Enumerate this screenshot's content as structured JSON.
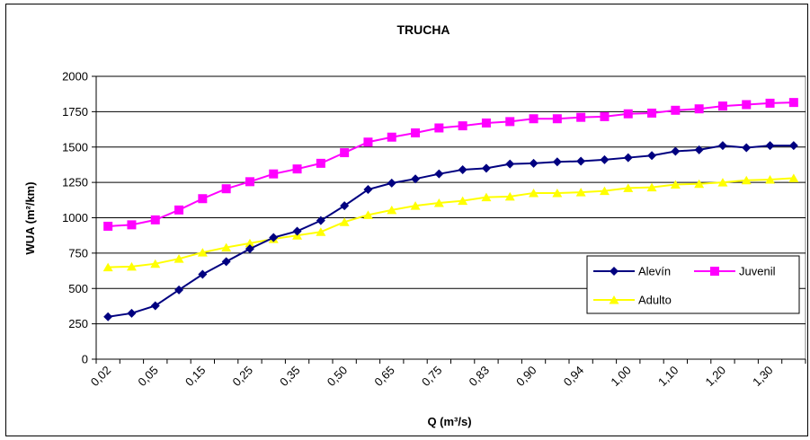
{
  "chart_data": {
    "type": "line",
    "title": "TRUCHA",
    "xlabel": "Q (m³/s)",
    "ylabel": "WUA (m²/km)",
    "ylim": [
      0,
      2000
    ],
    "yticks": [
      0,
      250,
      500,
      750,
      1000,
      1250,
      1500,
      1750,
      2000
    ],
    "ytick_labels": [
      "0",
      "250",
      "500",
      "750",
      "1000",
      "1250",
      "1500",
      "1750",
      "2000"
    ],
    "x_tick_labels": [
      "0,02",
      "0,05",
      "0,15",
      "0,25",
      "0,35",
      "0,50",
      "0,65",
      "0,75",
      "0,83",
      "0,90",
      "0,94",
      "1,00",
      "1,10",
      "1,20",
      "1,30"
    ],
    "grid": "horizontal",
    "legend_position": "bottom-right",
    "series": [
      {
        "name": "Alevín",
        "color": "#000080",
        "marker": "diamond",
        "values": [
          300,
          325,
          378,
          490,
          600,
          690,
          780,
          860,
          905,
          980,
          1085,
          1200,
          1245,
          1275,
          1310,
          1340,
          1350,
          1380,
          1385,
          1395,
          1400,
          1410,
          1425,
          1440,
          1470,
          1480,
          1510,
          1495,
          1510,
          1510
        ]
      },
      {
        "name": "Juvenil",
        "color": "#ff00ff",
        "marker": "square",
        "values": [
          940,
          950,
          985,
          1055,
          1135,
          1205,
          1255,
          1310,
          1345,
          1385,
          1460,
          1535,
          1570,
          1600,
          1635,
          1650,
          1670,
          1680,
          1700,
          1700,
          1710,
          1715,
          1735,
          1740,
          1760,
          1770,
          1790,
          1800,
          1810,
          1815
        ]
      },
      {
        "name": "Adulto",
        "color": "#ffff00",
        "marker": "triangle",
        "values": [
          650,
          655,
          675,
          710,
          755,
          790,
          820,
          850,
          875,
          900,
          970,
          1020,
          1055,
          1085,
          1105,
          1120,
          1145,
          1150,
          1175,
          1175,
          1180,
          1190,
          1210,
          1215,
          1235,
          1240,
          1250,
          1265,
          1270,
          1280
        ]
      }
    ]
  }
}
